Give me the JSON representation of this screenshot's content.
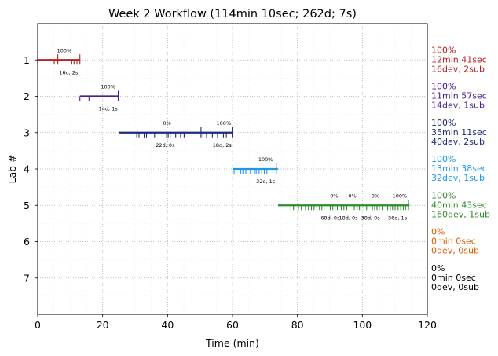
{
  "chart_data": {
    "type": "timeline",
    "title": "Week 2 Workflow (114min 10sec; 262d; 7s)",
    "xlabel": "Time (min)",
    "ylabel": "Lab #",
    "xlim": [
      0,
      120
    ],
    "ylim": [
      8,
      0
    ],
    "x_ticks": [
      "0",
      "20",
      "40",
      "60",
      "80",
      "100",
      "120"
    ],
    "y_ticks": [
      "1",
      "2",
      "3",
      "4",
      "5",
      "6",
      "7"
    ],
    "grid": true,
    "labs": [
      {
        "lab": 1,
        "color": "#b22222",
        "start": 0,
        "end": 13,
        "stats": [
          "100%",
          "12min 41sec",
          "16dev, 2sub"
        ],
        "segments": [
          {
            "pct": "100%",
            "pct_x": 8.2,
            "detail": "16d, 2s",
            "detail_x": 9.5
          }
        ],
        "markers": [
          {
            "x": 0,
            "tall": true
          },
          {
            "x": 6.2,
            "tall": true
          },
          {
            "x": 13,
            "tall": true
          },
          {
            "x": 5.1
          },
          {
            "x": 10.5
          },
          {
            "x": 11.2
          },
          {
            "x": 12.1
          }
        ]
      },
      {
        "lab": 2,
        "color": "#4b1c8f",
        "start": 13,
        "end": 25,
        "stats": [
          "100%",
          "11min 57sec",
          "14dev, 1sub"
        ],
        "segments": [
          {
            "pct": "100%",
            "pct_x": 21.7,
            "detail": "14d, 1s",
            "detail_x": 21.7
          }
        ],
        "markers": [
          {
            "x": 13
          },
          {
            "x": 15.8
          },
          {
            "x": 24.8,
            "tall": true
          }
        ]
      },
      {
        "lab": 3,
        "color": "#1f2a7a",
        "start": 25,
        "end": 60,
        "stats": [
          "100%",
          "35min 11sec",
          "40dev, 2sub"
        ],
        "segments": [
          {
            "pct": "0%",
            "pct_x": 39.8,
            "detail": "22d, 0s",
            "detail_x": 39.3
          },
          {
            "pct": "100%",
            "pct_x": 57.3,
            "detail": "18d, 2s",
            "detail_x": 56.8
          }
        ],
        "markers": [
          {
            "x": 30.5
          },
          {
            "x": 31.2
          },
          {
            "x": 32.8
          },
          {
            "x": 33.5
          },
          {
            "x": 36
          },
          {
            "x": 39.7
          },
          {
            "x": 40.2
          },
          {
            "x": 40.8
          },
          {
            "x": 42.5
          },
          {
            "x": 44
          },
          {
            "x": 45.1
          },
          {
            "x": 50.3,
            "tall": true
          },
          {
            "x": 50.9
          },
          {
            "x": 52
          },
          {
            "x": 53.8
          },
          {
            "x": 55.4
          },
          {
            "x": 57.2
          },
          {
            "x": 58.1
          },
          {
            "x": 59.9,
            "tall": true
          }
        ]
      },
      {
        "lab": 4,
        "color": "#2196e8",
        "start": 60,
        "end": 74,
        "stats": [
          "100%",
          "13min 38sec",
          "32dev, 1sub"
        ],
        "segments": [
          {
            "pct": "100%",
            "pct_x": 70.2,
            "detail": "32d, 1s",
            "detail_x": 70.2
          }
        ],
        "markers": [
          {
            "x": 60.5
          },
          {
            "x": 62.5
          },
          {
            "x": 63.2
          },
          {
            "x": 64.1
          },
          {
            "x": 65.5
          },
          {
            "x": 66.8
          },
          {
            "x": 67.3
          },
          {
            "x": 68.2
          },
          {
            "x": 69
          },
          {
            "x": 69.8
          },
          {
            "x": 70.6
          },
          {
            "x": 73.5,
            "tall": true
          }
        ]
      },
      {
        "lab": 5,
        "color": "#2e8b2e",
        "start": 74,
        "end": 114.5,
        "stats": [
          "100%",
          "40min 43sec",
          "160dev, 1sub"
        ],
        "segments": [
          {
            "pct": "0%",
            "pct_x": 91.3,
            "detail": "68d, 0s",
            "detail_x": 90.1
          },
          {
            "pct": "0%",
            "pct_x": 96.9,
            "detail": "18d, 0s",
            "detail_x": 95.7
          },
          {
            "pct": "0%",
            "pct_x": 104,
            "detail": "38d, 0s",
            "detail_x": 102.5
          },
          {
            "pct": "100%",
            "pct_x": 111.5,
            "detail": "36d, 1s",
            "detail_x": 110.8
          }
        ],
        "markers": [
          {
            "x": 78
          },
          {
            "x": 78.8
          },
          {
            "x": 80.3
          },
          {
            "x": 81.2
          },
          {
            "x": 82.5
          },
          {
            "x": 83.4
          },
          {
            "x": 84.3
          },
          {
            "x": 85.1
          },
          {
            "x": 86
          },
          {
            "x": 86.8
          },
          {
            "x": 87.5
          },
          {
            "x": 88.2
          },
          {
            "x": 90.1
          },
          {
            "x": 90.9
          },
          {
            "x": 91.6
          },
          {
            "x": 92.3
          },
          {
            "x": 93.5
          },
          {
            "x": 94.3
          },
          {
            "x": 95.2
          },
          {
            "x": 97.5
          },
          {
            "x": 98.4
          },
          {
            "x": 99.1
          },
          {
            "x": 100.5
          },
          {
            "x": 101.3
          },
          {
            "x": 103.1
          },
          {
            "x": 103.8
          },
          {
            "x": 104.5
          },
          {
            "x": 105.2
          },
          {
            "x": 106.1
          },
          {
            "x": 107.8
          },
          {
            "x": 108.6
          },
          {
            "x": 109.3
          },
          {
            "x": 110.1
          },
          {
            "x": 111
          },
          {
            "x": 111.8
          },
          {
            "x": 112.6
          },
          {
            "x": 113.3
          },
          {
            "x": 114.2,
            "tall": true
          }
        ]
      },
      {
        "lab": 6,
        "color": "#e05a00",
        "start": null,
        "end": null,
        "stats": [
          "0%",
          "0min 0sec",
          "0dev, 0sub"
        ],
        "segments": [],
        "markers": []
      },
      {
        "lab": 7,
        "color": "#000000",
        "start": null,
        "end": null,
        "stats": [
          "0%",
          "0min 0sec",
          "0dev, 0sub"
        ],
        "segments": [],
        "markers": []
      }
    ]
  }
}
